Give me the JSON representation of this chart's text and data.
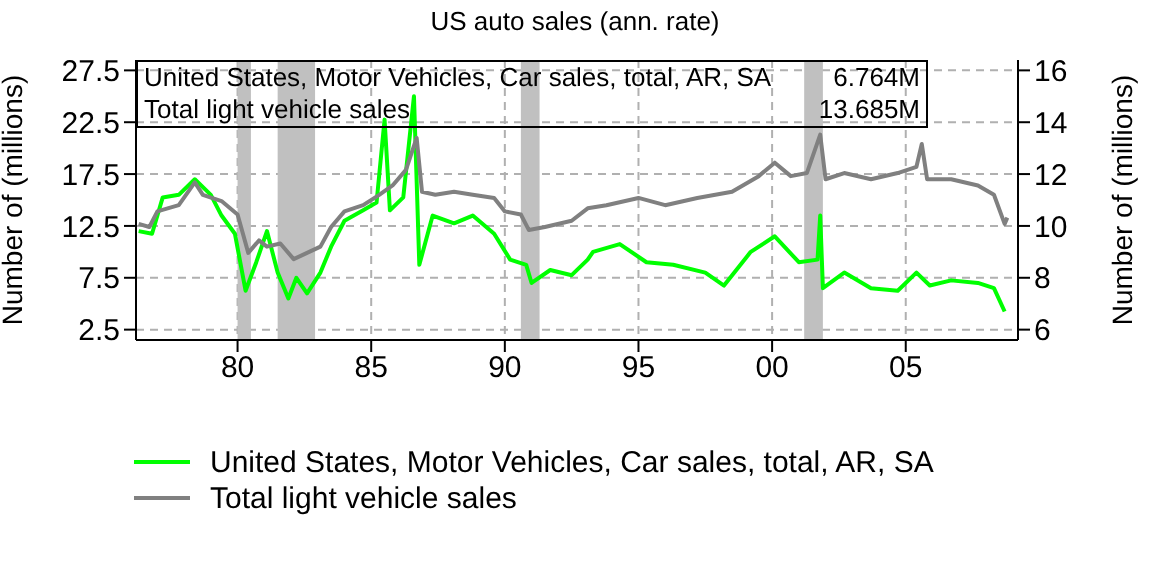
{
  "chart_data": {
    "type": "line",
    "title": "US auto sales (ann. rate)",
    "ylabel": "Number of (millions)",
    "y2label": "Number of (millions)",
    "annotations": [
      "United States, Motor Vehicles, Car sales, total, AR, SA",
      "6.764M",
      "Total light vehicle sales",
      "13.685M"
    ],
    "series": [
      {
        "name": "United States, Motor Vehicles, Car sales, total, AR, SA",
        "color": "#00ff00",
        "axis": "y2",
        "x": [
          1976.3,
          1976.8,
          1977.2,
          1977.8,
          1978.4,
          1979.0,
          1979.4,
          1979.9,
          1980.3,
          1980.7,
          1981.1,
          1981.5,
          1981.9,
          1982.2,
          1982.6,
          1983.1,
          1983.5,
          1984.0,
          1984.7,
          1985.2,
          1985.5,
          1985.7,
          1986.2,
          1986.6,
          1986.8,
          1987.3,
          1988.1,
          1988.8,
          1989.6,
          1990.2,
          1990.8,
          1991.0,
          1991.7,
          1992.5,
          1993.1,
          1993.3,
          1994.3,
          1995.3,
          1996.3,
          1997.5,
          1998.2,
          1999.2,
          2000.1,
          2001.0,
          2001.7,
          2001.8,
          2001.9,
          2002.7,
          2003.7,
          2004.7,
          2005.4,
          2005.9,
          2006.7,
          2007.7,
          2008.3,
          2008.7
        ],
        "values": [
          9.8,
          9.7,
          11.1,
          11.2,
          11.8,
          11.2,
          10.4,
          9.7,
          7.5,
          8.6,
          9.8,
          8.2,
          7.2,
          8.0,
          7.4,
          8.2,
          9.2,
          10.2,
          10.6,
          10.9,
          14.1,
          10.6,
          11.1,
          15.0,
          8.5,
          10.4,
          10.1,
          10.4,
          9.7,
          8.7,
          8.5,
          7.8,
          8.3,
          8.1,
          8.7,
          9.0,
          9.3,
          8.6,
          8.5,
          8.2,
          7.7,
          9.0,
          9.6,
          8.6,
          8.7,
          10.4,
          7.6,
          8.2,
          7.6,
          7.5,
          8.2,
          7.7,
          7.9,
          7.8,
          7.6,
          6.7
        ]
      },
      {
        "name": "Total light vehicle sales",
        "color": "#808080",
        "x": [
          1976.3,
          1976.7,
          1977.0,
          1977.8,
          1978.4,
          1978.7,
          1979.4,
          1980.0,
          1980.4,
          1980.8,
          1981.1,
          1981.6,
          1982.1,
          1982.6,
          1983.1,
          1983.5,
          1984.0,
          1984.7,
          1985.3,
          1985.8,
          1986.3,
          1986.7,
          1986.9,
          1987.4,
          1988.1,
          1988.8,
          1989.6,
          1990.0,
          1990.6,
          1990.9,
          1991.5,
          1992.5,
          1993.1,
          1993.8,
          1995.0,
          1996.0,
          1997.2,
          1998.5,
          1999.5,
          2000.1,
          2000.7,
          2001.3,
          2001.8,
          2002.0,
          2002.7,
          2003.7,
          2004.7,
          2005.4,
          2005.6,
          2005.8,
          2006.7,
          2007.7,
          2008.3,
          2008.7,
          2008.8
        ],
        "values": [
          12.7,
          12.4,
          13.9,
          14.5,
          16.7,
          15.5,
          14.9,
          13.6,
          9.9,
          11.1,
          10.5,
          10.8,
          9.3,
          9.9,
          10.5,
          12.4,
          13.9,
          14.5,
          15.5,
          16.4,
          17.9,
          21.0,
          15.8,
          15.5,
          15.8,
          15.5,
          15.2,
          13.9,
          13.6,
          12.1,
          12.4,
          13.0,
          14.2,
          14.5,
          15.2,
          14.5,
          15.2,
          15.8,
          17.3,
          18.6,
          17.3,
          17.6,
          21.3,
          17.0,
          17.6,
          17.0,
          17.6,
          18.2,
          20.4,
          17.0,
          17.0,
          16.4,
          15.5,
          12.7,
          13.3
        ]
      }
    ],
    "xlim": [
      1976.2,
      2009.2
    ],
    "xticks": [
      {
        "value": 1980,
        "label": "80"
      },
      {
        "value": 1985,
        "label": "85"
      },
      {
        "value": 1990,
        "label": "90"
      },
      {
        "value": 1995,
        "label": "95"
      },
      {
        "value": 2000,
        "label": "00"
      },
      {
        "value": 2005,
        "label": "05"
      }
    ],
    "ylim": [
      1.5,
      28.5
    ],
    "yticks": [
      2.5,
      7.5,
      12.5,
      17.5,
      22.5,
      27.5
    ],
    "y2lim": [
      5.6,
      16.4
    ],
    "y2ticks": [
      6,
      8,
      10,
      12,
      14,
      16
    ],
    "bands": [
      {
        "axis": "x",
        "from": 1980.0,
        "to": 1980.5,
        "color": "#c0c0c0"
      },
      {
        "axis": "x",
        "from": 1981.5,
        "to": 1982.9,
        "color": "#c0c0c0"
      },
      {
        "axis": "x",
        "from": 1990.6,
        "to": 1991.3,
        "color": "#c0c0c0"
      },
      {
        "axis": "x",
        "from": 2001.2,
        "to": 2001.9,
        "color": "#c0c0c0"
      }
    ],
    "grid": true,
    "legend": "bottom",
    "line_style": "solid",
    "marker": "none"
  }
}
